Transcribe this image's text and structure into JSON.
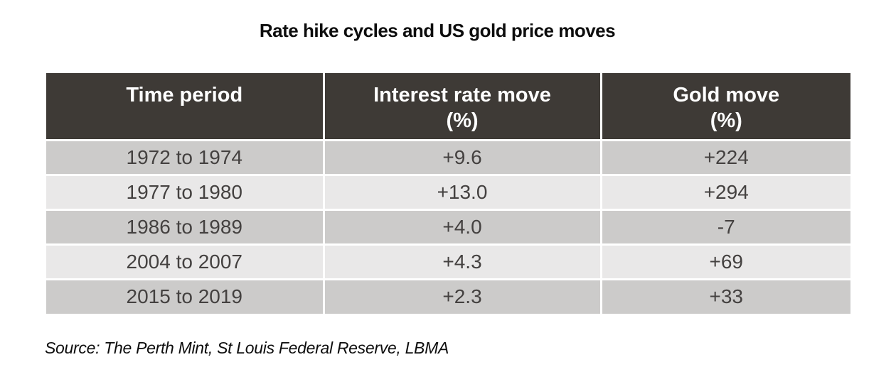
{
  "title": "Rate hike cycles and US gold price moves",
  "table": {
    "headers": [
      {
        "line1": "Time period",
        "line2": ""
      },
      {
        "line1": "Interest rate move",
        "line2": "(%)"
      },
      {
        "line1": "Gold move",
        "line2": "(%)"
      }
    ],
    "rows": [
      {
        "period": "1972 to 1974",
        "rate": "+9.6",
        "gold": "+224"
      },
      {
        "period": "1977 to 1980",
        "rate": "+13.0",
        "gold": "+294"
      },
      {
        "period": "1986 to 1989",
        "rate": "+4.0",
        "gold": "-7"
      },
      {
        "period": "2004 to 2007",
        "rate": "+4.3",
        "gold": "+69"
      },
      {
        "period": "2015 to 2019",
        "rate": "+2.3",
        "gold": "+33"
      }
    ]
  },
  "source": "Source: The Perth Mint, St Louis Federal Reserve, LBMA",
  "colors": {
    "header_bg": "#3e3a36",
    "header_text": "#ffffff",
    "row_dark": "#cccbca",
    "row_light": "#e9e8e8",
    "body_text": "#444140",
    "separator": "#ffffff",
    "title_text": "#0d0d0d"
  },
  "chart_data": {
    "type": "table",
    "title": "Rate hike cycles and US gold price moves",
    "columns": [
      "Time period",
      "Interest rate move (%)",
      "Gold move (%)"
    ],
    "rows": [
      [
        "1972 to 1974",
        9.6,
        224
      ],
      [
        "1977 to 1980",
        13.0,
        294
      ],
      [
        "1986 to 1989",
        4.0,
        -7
      ],
      [
        "2004 to 2007",
        4.3,
        69
      ],
      [
        "2015 to 2019",
        2.3,
        33
      ]
    ],
    "source": "Source: The Perth Mint, St Louis Federal Reserve, LBMA"
  }
}
